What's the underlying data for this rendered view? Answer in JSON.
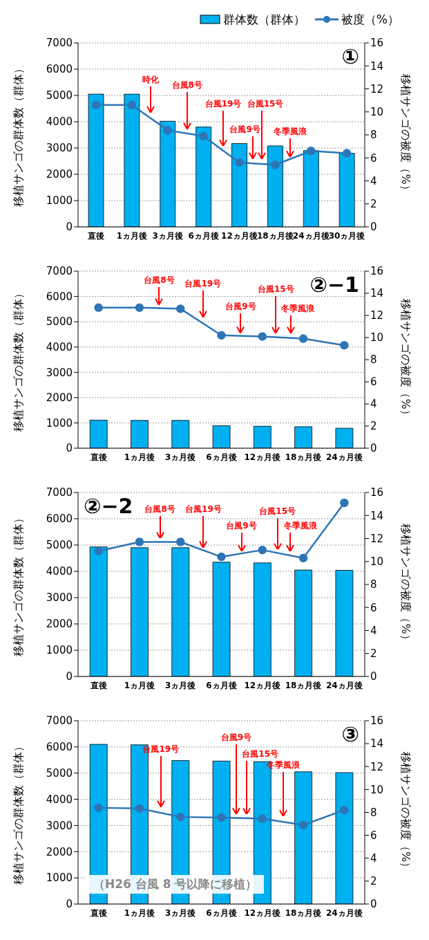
{
  "chart_data": [
    {
      "type": "bar",
      "title": "①",
      "categories": [
        "直後",
        "1ヵ月後",
        "3ヵ月後",
        "6ヵ月後",
        "12ヵ月後",
        "18ヵ月後",
        "24ヵ月後",
        "30ヵ月後"
      ],
      "series": [
        {
          "name": "群体数（群体）",
          "color": "#00b0f0",
          "values": [
            5050,
            5050,
            4020,
            3800,
            3170,
            3080,
            2900,
            2800
          ]
        },
        {
          "name": "被度（%）",
          "type": "line",
          "axis": "y2",
          "color": "#2e75b6",
          "values": [
            10.6,
            10.6,
            8.4,
            7.9,
            5.6,
            5.4,
            6.6,
            6.4
          ]
        }
      ],
      "ylabel": "移植サンゴの群体数（群体）",
      "y2label": "移植サンゴの被度（%）",
      "ylim": [
        0,
        7000
      ],
      "yticks": [
        0,
        1000,
        2000,
        3000,
        4000,
        5000,
        6000,
        7000
      ],
      "y2lim": [
        0,
        16
      ],
      "y2ticks": [
        0,
        2,
        4,
        6,
        8,
        10,
        12,
        14,
        16
      ],
      "grid": "y",
      "legend": "top right",
      "marker": "circle",
      "annotations": [
        "時化",
        "台風8号",
        "台風19号",
        "台風9号",
        "台風15号",
        "冬季風浪"
      ]
    },
    {
      "type": "bar",
      "title": "②−1",
      "categories": [
        "直後",
        "1ヵ月後",
        "3ヵ月後",
        "6ヵ月後",
        "12ヵ月後",
        "18ヵ月後",
        "24ヵ月後"
      ],
      "series": [
        {
          "color": "#00b0f0",
          "values": [
            1110,
            1100,
            1100,
            890,
            870,
            850,
            790
          ]
        },
        {
          "type": "line",
          "axis": "y2",
          "color": "#2e75b6",
          "values": [
            12.7,
            12.7,
            12.6,
            10.2,
            10.1,
            9.9,
            9.3
          ]
        }
      ],
      "ylabel": "移植サンゴの群体数（群体）",
      "y2label": "移植サンゴの被度（%）",
      "ylim": [
        0,
        7000
      ],
      "yticks": [
        0,
        1000,
        2000,
        3000,
        4000,
        5000,
        6000,
        7000
      ],
      "y2lim": [
        0,
        16
      ],
      "y2ticks": [
        0,
        2,
        4,
        6,
        8,
        10,
        12,
        14,
        16
      ],
      "grid": "y",
      "marker": "circle",
      "annotations": [
        "台風8号",
        "台風19号",
        "台風9号",
        "台風15号",
        "冬季風浪"
      ]
    },
    {
      "type": "bar",
      "title": "②−2",
      "categories": [
        "直後",
        "1ヵ月後",
        "3ヵ月後",
        "6ヵ月後",
        "12ヵ月後",
        "18ヵ月後",
        "24ヵ月後"
      ],
      "series": [
        {
          "color": "#00b0f0",
          "values": [
            4930,
            4900,
            4900,
            4350,
            4320,
            4050,
            4040
          ]
        },
        {
          "type": "line",
          "axis": "y2",
          "color": "#2e75b6",
          "values": [
            10.9,
            11.7,
            11.7,
            10.4,
            11.0,
            10.3,
            15.1
          ]
        }
      ],
      "ylabel": "移植サンゴの群体数（群体）",
      "y2label": "移植サンゴの被度（%）",
      "ylim": [
        0,
        7000
      ],
      "yticks": [
        0,
        1000,
        2000,
        3000,
        4000,
        5000,
        6000,
        7000
      ],
      "y2lim": [
        0,
        16
      ],
      "y2ticks": [
        0,
        2,
        4,
        6,
        8,
        10,
        12,
        14,
        16
      ],
      "grid": "y",
      "marker": "circle",
      "annotations": [
        "台風8号",
        "台風19号",
        "台風9号",
        "台風15号",
        "冬季風浪"
      ]
    },
    {
      "type": "bar",
      "title": "③",
      "categories": [
        "直後",
        "1ヵ月後",
        "3ヵ月後",
        "6ヵ月後",
        "12ヵ月後",
        "18ヵ月後",
        "24ヵ月後"
      ],
      "series": [
        {
          "color": "#00b0f0",
          "values": [
            6100,
            6080,
            5480,
            5460,
            5440,
            5050,
            5020
          ]
        },
        {
          "type": "line",
          "axis": "y2",
          "color": "#2e75b6",
          "values": [
            8.4,
            8.35,
            7.6,
            7.55,
            7.45,
            6.9,
            8.2
          ]
        }
      ],
      "ylabel": "移植サンゴの群体数（群体）",
      "y2label": "移植サンゴの被度（%）",
      "ylim": [
        0,
        7000
      ],
      "yticks": [
        0,
        1000,
        2000,
        3000,
        4000,
        5000,
        6000,
        7000
      ],
      "y2lim": [
        0,
        16
      ],
      "y2ticks": [
        0,
        2,
        4,
        6,
        8,
        10,
        12,
        14,
        16
      ],
      "grid": "y",
      "marker": "circle",
      "annotations": [
        "台風19号",
        "台風9号",
        "台風15号",
        "冬季風浪",
        "（H26 台風 8 号以降に移植）"
      ]
    }
  ]
}
